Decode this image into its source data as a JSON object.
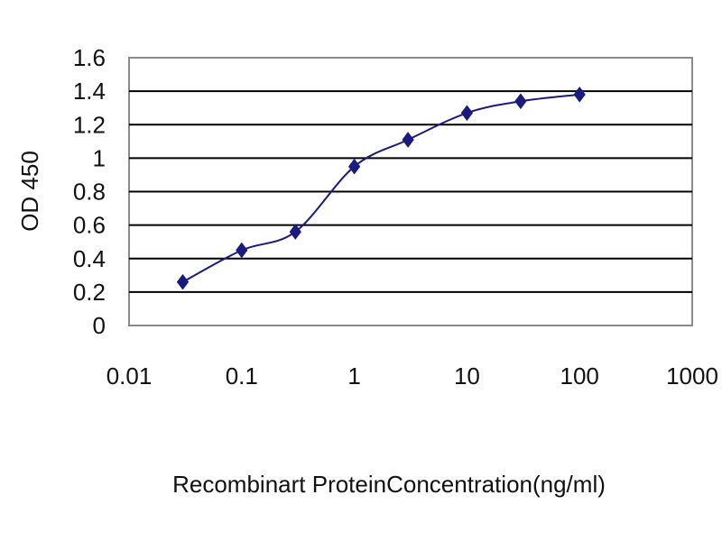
{
  "chart_data": {
    "type": "line",
    "title": "",
    "xlabel": "Recombinart ProteinConcentration(ng/ml)",
    "ylabel": "OD 450",
    "x_scale": "log",
    "xlim": [
      0.01,
      1000
    ],
    "ylim": [
      0,
      1.6
    ],
    "x_tick_labels": [
      "0.01",
      "0.1",
      "1",
      "10",
      "100",
      "1000"
    ],
    "y_tick_labels": [
      "0",
      "0.2",
      "0.4",
      "0.6",
      "0.8",
      "1",
      "1.2",
      "1.4",
      "1.6"
    ],
    "grid": "horizontal",
    "legend": "none",
    "series": [
      {
        "x": [
          0.03,
          0.1,
          0.3,
          1,
          3,
          10,
          30,
          100
        ],
        "y": [
          0.26,
          0.45,
          0.56,
          0.95,
          1.11,
          1.27,
          1.34,
          1.38
        ],
        "color": "#1a1a80",
        "marker": "diamond",
        "smoothed": true
      }
    ]
  }
}
